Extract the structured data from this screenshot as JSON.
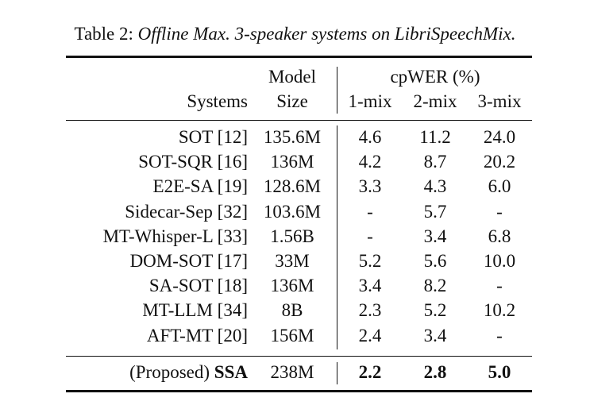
{
  "caption": {
    "label": "Table 2:",
    "title": "Offline Max. 3-speaker systems on LibriSpeechMix."
  },
  "header": {
    "systems": "Systems",
    "model_line1": "Model",
    "model_line2": "Size",
    "group": "cpWER (%)",
    "cols": [
      "1-mix",
      "2-mix",
      "3-mix"
    ]
  },
  "rows": [
    {
      "system": "SOT [12]",
      "size": "135.6M",
      "v1": "4.6",
      "v2": "11.2",
      "v3": "24.0"
    },
    {
      "system": "SOT-SQR [16]",
      "size": "136M",
      "v1": "4.2",
      "v2": "8.7",
      "v3": "20.2"
    },
    {
      "system": "E2E-SA [19]",
      "size": "128.6M",
      "v1": "3.3",
      "v2": "4.3",
      "v3": "6.0"
    },
    {
      "system": "Sidecar-Sep [32]",
      "size": "103.6M",
      "v1": "-",
      "v2": "5.7",
      "v3": "-"
    },
    {
      "system": "MT-Whisper-L  [33]",
      "size": "1.56B",
      "v1": "-",
      "v2": "3.4",
      "v3": "6.8"
    },
    {
      "system": "DOM-SOT [17]",
      "size": "33M",
      "v1": "5.2",
      "v2": "5.6",
      "v3": "10.0"
    },
    {
      "system": "SA-SOT [18]",
      "size": "136M",
      "v1": "3.4",
      "v2": "8.2",
      "v3": "-"
    },
    {
      "system": "MT-LLM [34]",
      "size": "8B",
      "v1": "2.3",
      "v2": "5.2",
      "v3": "10.2"
    },
    {
      "system": "AFT-MT [20]",
      "size": "156M",
      "v1": "2.4",
      "v2": "3.4",
      "v3": "-"
    }
  ],
  "proposed": {
    "prefix": "(Proposed) ",
    "name": "SSA",
    "size": "238M",
    "v1": "2.2",
    "v2": "2.8",
    "v3": "5.0"
  }
}
